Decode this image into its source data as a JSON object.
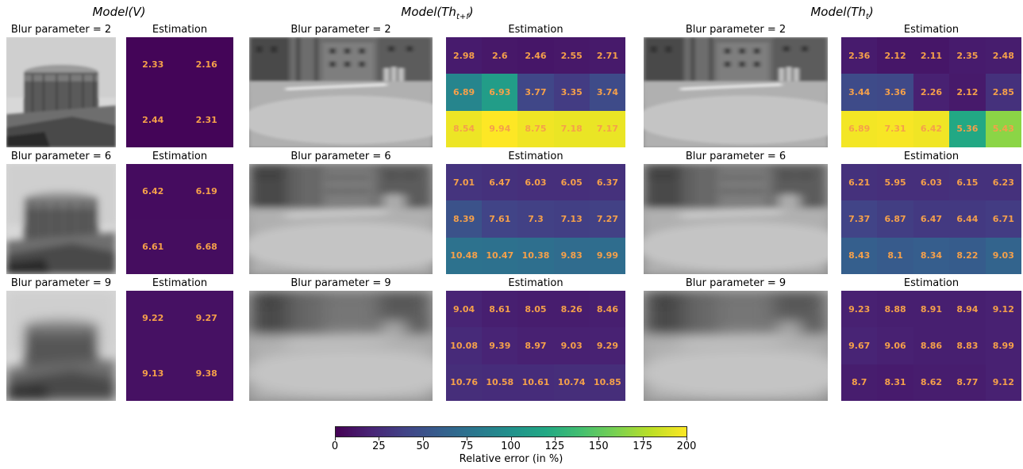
{
  "panels": [
    {
      "title": "Model",
      "title_arg": "V",
      "title_sub": "",
      "photo_type": "tank",
      "rows": [
        {
          "blur_label": "Blur parameter = 2",
          "estimation_label": "Estimation",
          "values": [
            [
              2.33,
              2.16
            ],
            [
              2.44,
              2.31
            ]
          ]
        },
        {
          "blur_label": "Blur parameter = 6",
          "estimation_label": "Estimation",
          "values": [
            [
              6.42,
              6.19
            ],
            [
              6.61,
              6.68
            ]
          ]
        },
        {
          "blur_label": "Blur parameter = 9",
          "estimation_label": "Estimation",
          "values": [
            [
              9.22,
              9.27
            ],
            [
              9.13,
              9.38
            ]
          ]
        }
      ]
    },
    {
      "title": "Model",
      "title_arg": "Th",
      "title_sub": "t+f",
      "photo_type": "street",
      "rows": [
        {
          "blur_label": "Blur parameter = 2",
          "estimation_label": "Estimation",
          "values": [
            [
              2.98,
              2.6,
              2.46,
              2.55,
              2.71
            ],
            [
              6.89,
              6.93,
              3.77,
              3.35,
              3.74
            ],
            [
              8.54,
              9.94,
              8.75,
              7.18,
              7.17
            ]
          ],
          "heat": [
            [
              15,
              13,
              12,
              13,
              14
            ],
            [
              90,
              110,
              42,
              35,
              45
            ],
            [
              195,
              200,
              196,
              194,
              194
            ]
          ]
        },
        {
          "blur_label": "Blur parameter = 6",
          "estimation_label": "Estimation",
          "values": [
            [
              7.01,
              6.47,
              6.03,
              6.05,
              6.37
            ],
            [
              8.39,
              7.61,
              7.3,
              7.13,
              7.27
            ],
            [
              10.48,
              10.47,
              10.38,
              9.83,
              9.99
            ]
          ],
          "heat": [
            [
              30,
              28,
              27,
              27,
              28
            ],
            [
              50,
              40,
              38,
              37,
              38
            ],
            [
              75,
              74,
              73,
              70,
              71
            ]
          ]
        },
        {
          "blur_label": "Blur parameter = 9",
          "estimation_label": "Estimation",
          "values": [
            [
              9.04,
              8.61,
              8.05,
              8.26,
              8.46
            ],
            [
              10.08,
              9.39,
              8.97,
              9.03,
              9.29
            ],
            [
              10.76,
              10.58,
              10.61,
              10.74,
              10.85
            ]
          ],
          "heat": [
            [
              20,
              17,
              16,
              16,
              17
            ],
            [
              24,
              20,
              18,
              18,
              19
            ],
            [
              26,
              25,
              25,
              26,
              26
            ]
          ]
        }
      ]
    },
    {
      "title": "Model",
      "title_arg": "Th",
      "title_sub": "t",
      "photo_type": "street",
      "rows": [
        {
          "blur_label": "Blur parameter = 2",
          "estimation_label": "Estimation",
          "values": [
            [
              2.36,
              2.12,
              2.11,
              2.35,
              2.48
            ],
            [
              3.44,
              3.36,
              2.26,
              2.12,
              2.85
            ],
            [
              6.89,
              7.31,
              6.42,
              5.36,
              5.43
            ]
          ],
          "heat": [
            [
              15,
              12,
              12,
              15,
              16
            ],
            [
              45,
              44,
              18,
              14,
              28
            ],
            [
              197,
              198,
              196,
              120,
              165
            ]
          ]
        },
        {
          "blur_label": "Blur parameter = 6",
          "estimation_label": "Estimation",
          "values": [
            [
              6.21,
              5.95,
              6.03,
              6.15,
              6.23
            ],
            [
              7.37,
              6.87,
              6.47,
              6.44,
              6.71
            ],
            [
              8.43,
              8.1,
              8.34,
              8.22,
              9.03
            ]
          ],
          "heat": [
            [
              28,
              27,
              27,
              28,
              28
            ],
            [
              40,
              36,
              33,
              33,
              35
            ],
            [
              60,
              57,
              59,
              58,
              64
            ]
          ]
        },
        {
          "blur_label": "Blur parameter = 9",
          "estimation_label": "Estimation",
          "values": [
            [
              9.23,
              8.88,
              8.91,
              8.94,
              9.12
            ],
            [
              9.67,
              9.06,
              8.86,
              8.83,
              8.99
            ],
            [
              8.7,
              8.31,
              8.62,
              8.77,
              9.12
            ]
          ],
          "heat": [
            [
              18,
              17,
              17,
              17,
              18
            ],
            [
              20,
              18,
              17,
              17,
              18
            ],
            [
              16,
              15,
              16,
              16,
              18
            ]
          ]
        }
      ]
    }
  ],
  "colorbar": {
    "label": "Relative error (in %)",
    "min": 0,
    "max": 200,
    "ticks": [
      0,
      25,
      50,
      75,
      100,
      125,
      150,
      175,
      200
    ]
  },
  "chart_data": {
    "type": "heatmap",
    "colorbar_label": "Relative error (in %)",
    "colorbar_range": [
      0,
      200
    ],
    "panels": [
      {
        "model": "Model(V)",
        "blur_parameters": [
          2,
          6,
          9
        ],
        "estimation": [
          [
            [
              2.33,
              2.16
            ],
            [
              2.44,
              2.31
            ]
          ],
          [
            [
              6.42,
              6.19
            ],
            [
              6.61,
              6.68
            ]
          ],
          [
            [
              9.22,
              9.27
            ],
            [
              9.13,
              9.38
            ]
          ]
        ]
      },
      {
        "model": "Model(Th_{t+f})",
        "blur_parameters": [
          2,
          6,
          9
        ],
        "estimation": [
          [
            [
              2.98,
              2.6,
              2.46,
              2.55,
              2.71
            ],
            [
              6.89,
              6.93,
              3.77,
              3.35,
              3.74
            ],
            [
              8.54,
              9.94,
              8.75,
              7.18,
              7.17
            ]
          ],
          [
            [
              7.01,
              6.47,
              6.03,
              6.05,
              6.37
            ],
            [
              8.39,
              7.61,
              7.3,
              7.13,
              7.27
            ],
            [
              10.48,
              10.47,
              10.38,
              9.83,
              9.99
            ]
          ],
          [
            [
              9.04,
              8.61,
              8.05,
              8.26,
              8.46
            ],
            [
              10.08,
              9.39,
              8.97,
              9.03,
              9.29
            ],
            [
              10.76,
              10.58,
              10.61,
              10.74,
              10.85
            ]
          ]
        ]
      },
      {
        "model": "Model(Th_t)",
        "blur_parameters": [
          2,
          6,
          9
        ],
        "estimation": [
          [
            [
              2.36,
              2.12,
              2.11,
              2.35,
              2.48
            ],
            [
              3.44,
              3.36,
              2.26,
              2.12,
              2.85
            ],
            [
              6.89,
              7.31,
              6.42,
              5.36,
              5.43
            ]
          ],
          [
            [
              6.21,
              5.95,
              6.03,
              6.15,
              6.23
            ],
            [
              7.37,
              6.87,
              6.47,
              6.44,
              6.71
            ],
            [
              8.43,
              8.1,
              8.34,
              8.22,
              9.03
            ]
          ],
          [
            [
              9.23,
              8.88,
              8.91,
              8.94,
              9.12
            ],
            [
              9.67,
              9.06,
              8.86,
              8.83,
              8.99
            ],
            [
              8.7,
              8.31,
              8.62,
              8.77,
              9.12
            ]
          ]
        ]
      }
    ]
  }
}
